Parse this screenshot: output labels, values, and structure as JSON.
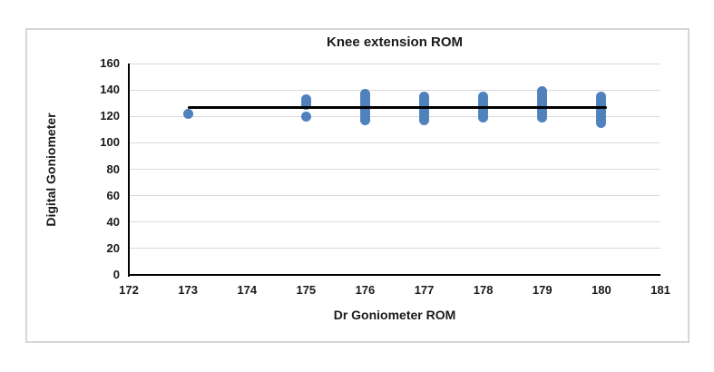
{
  "chart_data": {
    "type": "scatter",
    "title": "Knee extension ROM",
    "xlabel": "Dr Goniometer ROM",
    "ylabel": "Digital Goniometer",
    "xlim": [
      172,
      181
    ],
    "ylim": [
      0,
      160
    ],
    "x_ticks": [
      172,
      173,
      174,
      175,
      176,
      177,
      178,
      179,
      180,
      181
    ],
    "y_ticks": [
      0,
      20,
      40,
      60,
      80,
      100,
      120,
      140,
      160
    ],
    "grid": "horizontal-only",
    "legend": "none",
    "colors": {
      "marker": "#4F81BD",
      "axis": "#000000",
      "gridline": "#d9d9d9",
      "text": "#1a1a1a",
      "chart_border": "#d6d6d6",
      "trendline": "#000000"
    },
    "series": [
      {
        "name": "Knee extension ROM",
        "marker": "circle",
        "points": [
          [
            173,
            122
          ],
          [
            175,
            133
          ],
          [
            175,
            131
          ],
          [
            175,
            129
          ],
          [
            175,
            120
          ],
          [
            176,
            137
          ],
          [
            176,
            135
          ],
          [
            176,
            133
          ],
          [
            176,
            131
          ],
          [
            176,
            129
          ],
          [
            176,
            127
          ],
          [
            176,
            125
          ],
          [
            176,
            123
          ],
          [
            176,
            121
          ],
          [
            176,
            119
          ],
          [
            176,
            117
          ],
          [
            177,
            135
          ],
          [
            177,
            133
          ],
          [
            177,
            131
          ],
          [
            177,
            129
          ],
          [
            177,
            127
          ],
          [
            177,
            125
          ],
          [
            177,
            123
          ],
          [
            177,
            121
          ],
          [
            177,
            119
          ],
          [
            177,
            117
          ],
          [
            178,
            135
          ],
          [
            178,
            133
          ],
          [
            178,
            131
          ],
          [
            178,
            129
          ],
          [
            178,
            127
          ],
          [
            178,
            125
          ],
          [
            178,
            123
          ],
          [
            178,
            121
          ],
          [
            178,
            119
          ],
          [
            179,
            139
          ],
          [
            179,
            137
          ],
          [
            179,
            135
          ],
          [
            179,
            133
          ],
          [
            179,
            131
          ],
          [
            179,
            129
          ],
          [
            179,
            127
          ],
          [
            179,
            125
          ],
          [
            179,
            123
          ],
          [
            179,
            121
          ],
          [
            179,
            119
          ],
          [
            180,
            135
          ],
          [
            180,
            133
          ],
          [
            180,
            131
          ],
          [
            180,
            129
          ],
          [
            180,
            127
          ],
          [
            180,
            125
          ],
          [
            180,
            123
          ],
          [
            180,
            121
          ],
          [
            180,
            119
          ],
          [
            180,
            117
          ],
          [
            180,
            115
          ]
        ]
      }
    ],
    "trendline": {
      "x1": 173,
      "y1": 127,
      "x2": 180.1,
      "y2": 127
    }
  }
}
